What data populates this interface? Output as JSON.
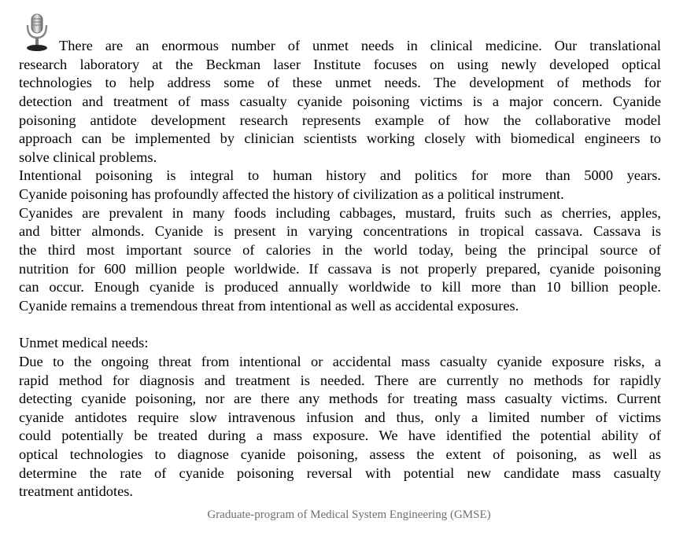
{
  "icon": "microphone-icon",
  "paragraphs": [
    {
      "name": "intro-paragraph",
      "lines": [
        "There are an enormous number of unmet needs in clinical medicine. Our translational",
        "research laboratory at the Beckman laser Institute focuses on using newly developed optical",
        "technologies to help address some of these unmet needs.  The development of methods for",
        "detection and treatment of mass casualty cyanide poisoning victims is a major concern. Cyanide",
        "poisoning antidote development research represents example of how the collaborative model",
        "approach can be implemented by clinician scientists working closely with biomedical engineers to",
        "solve clinical problems."
      ]
    },
    {
      "name": "history-paragraph",
      "lines": [
        "Intentional poisoning is integral to human history and politics for more than 5000 years.",
        "Cyanide poisoning has profoundly affected the history of civilization as a political instrument."
      ]
    },
    {
      "name": "sources-paragraph",
      "lines": [
        "Cyanides are prevalent in many foods including cabbages, mustard, fruits such as cherries, apples,",
        "and bitter almonds. Cyanide is present in varying concentrations in tropical cassava. Cassava is",
        "the third most important source of calories in the world today, being the principal source of",
        "nutrition for 600 million people worldwide. If cassava is not properly prepared, cyanide poisoning",
        "can occur. Enough cyanide is produced annually worldwide to kill more than 10 billion people.",
        "Cyanide remains a tremendous threat from intentional as well as accidental exposures."
      ]
    },
    {
      "name": "unmet-needs-heading",
      "blank_before": true,
      "lines": [
        "Unmet medical needs:"
      ]
    },
    {
      "name": "unmet-needs-paragraph",
      "lines": [
        "Due to the ongoing threat from intentional or accidental mass casualty cyanide exposure risks, a",
        "rapid method for diagnosis and treatment is needed. There are currently no methods for rapidly",
        "detecting cyanide poisoning, nor are there any methods for treating mass casualty victims. Current",
        "cyanide antidotes require slow intravenous infusion and thus, only a limited number of victims",
        "could potentially be treated during a mass exposure. We have identified the potential ability of",
        "optical technologies to diagnose cyanide poisoning, assess the extent of poisoning, as well as",
        "determine the rate of cyanide poisoning reversal with potential new candidate mass casualty",
        "treatment antidotes."
      ]
    }
  ],
  "footer": "Graduate-program of Medical System Engineering (GMSE)"
}
